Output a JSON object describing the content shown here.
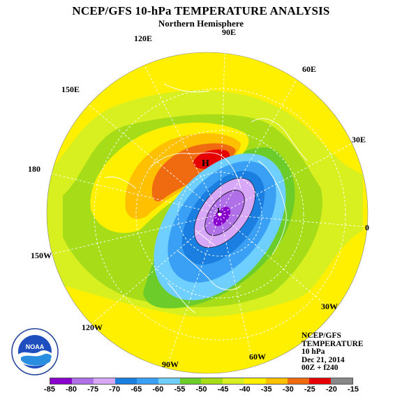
{
  "header": {
    "title": "NCEP/GFS 10-hPa TEMPERATURE ANALYSIS",
    "subtitle": "Northern Hemisphere"
  },
  "longitude_labels": {
    "e90": "90E",
    "e120": "120E",
    "e60": "60E",
    "e150": "150E",
    "e30": "30E",
    "d180": "180",
    "d0": "0",
    "w150": "150W",
    "w30": "30W",
    "w120": "120W",
    "w60": "60W",
    "w90": "90W"
  },
  "info": {
    "model": "NCEP/GFS",
    "field": "TEMPERATURE",
    "level": "10 hPa",
    "date": "Dec 21, 2014",
    "run": "00Z + f240"
  },
  "logo": {
    "text": "NOAA"
  },
  "markers": {
    "high": "H",
    "low": "L"
  },
  "colorbar": {
    "labels": [
      "-85",
      "-80",
      "-75",
      "-70",
      "-65",
      "-60",
      "-55",
      "-50",
      "-45",
      "-40",
      "-35",
      "-30",
      "-25",
      "-20",
      "-15"
    ],
    "colors": [
      "#8800cc",
      "#b070e8",
      "#d8a8f8",
      "#1a7fe0",
      "#3aa0f5",
      "#6fd0ff",
      "#6ccc2a",
      "#a6dc18",
      "#d8f020",
      "#fff000",
      "#ffc000",
      "#f06a10",
      "#e60000",
      "#888888"
    ]
  }
}
